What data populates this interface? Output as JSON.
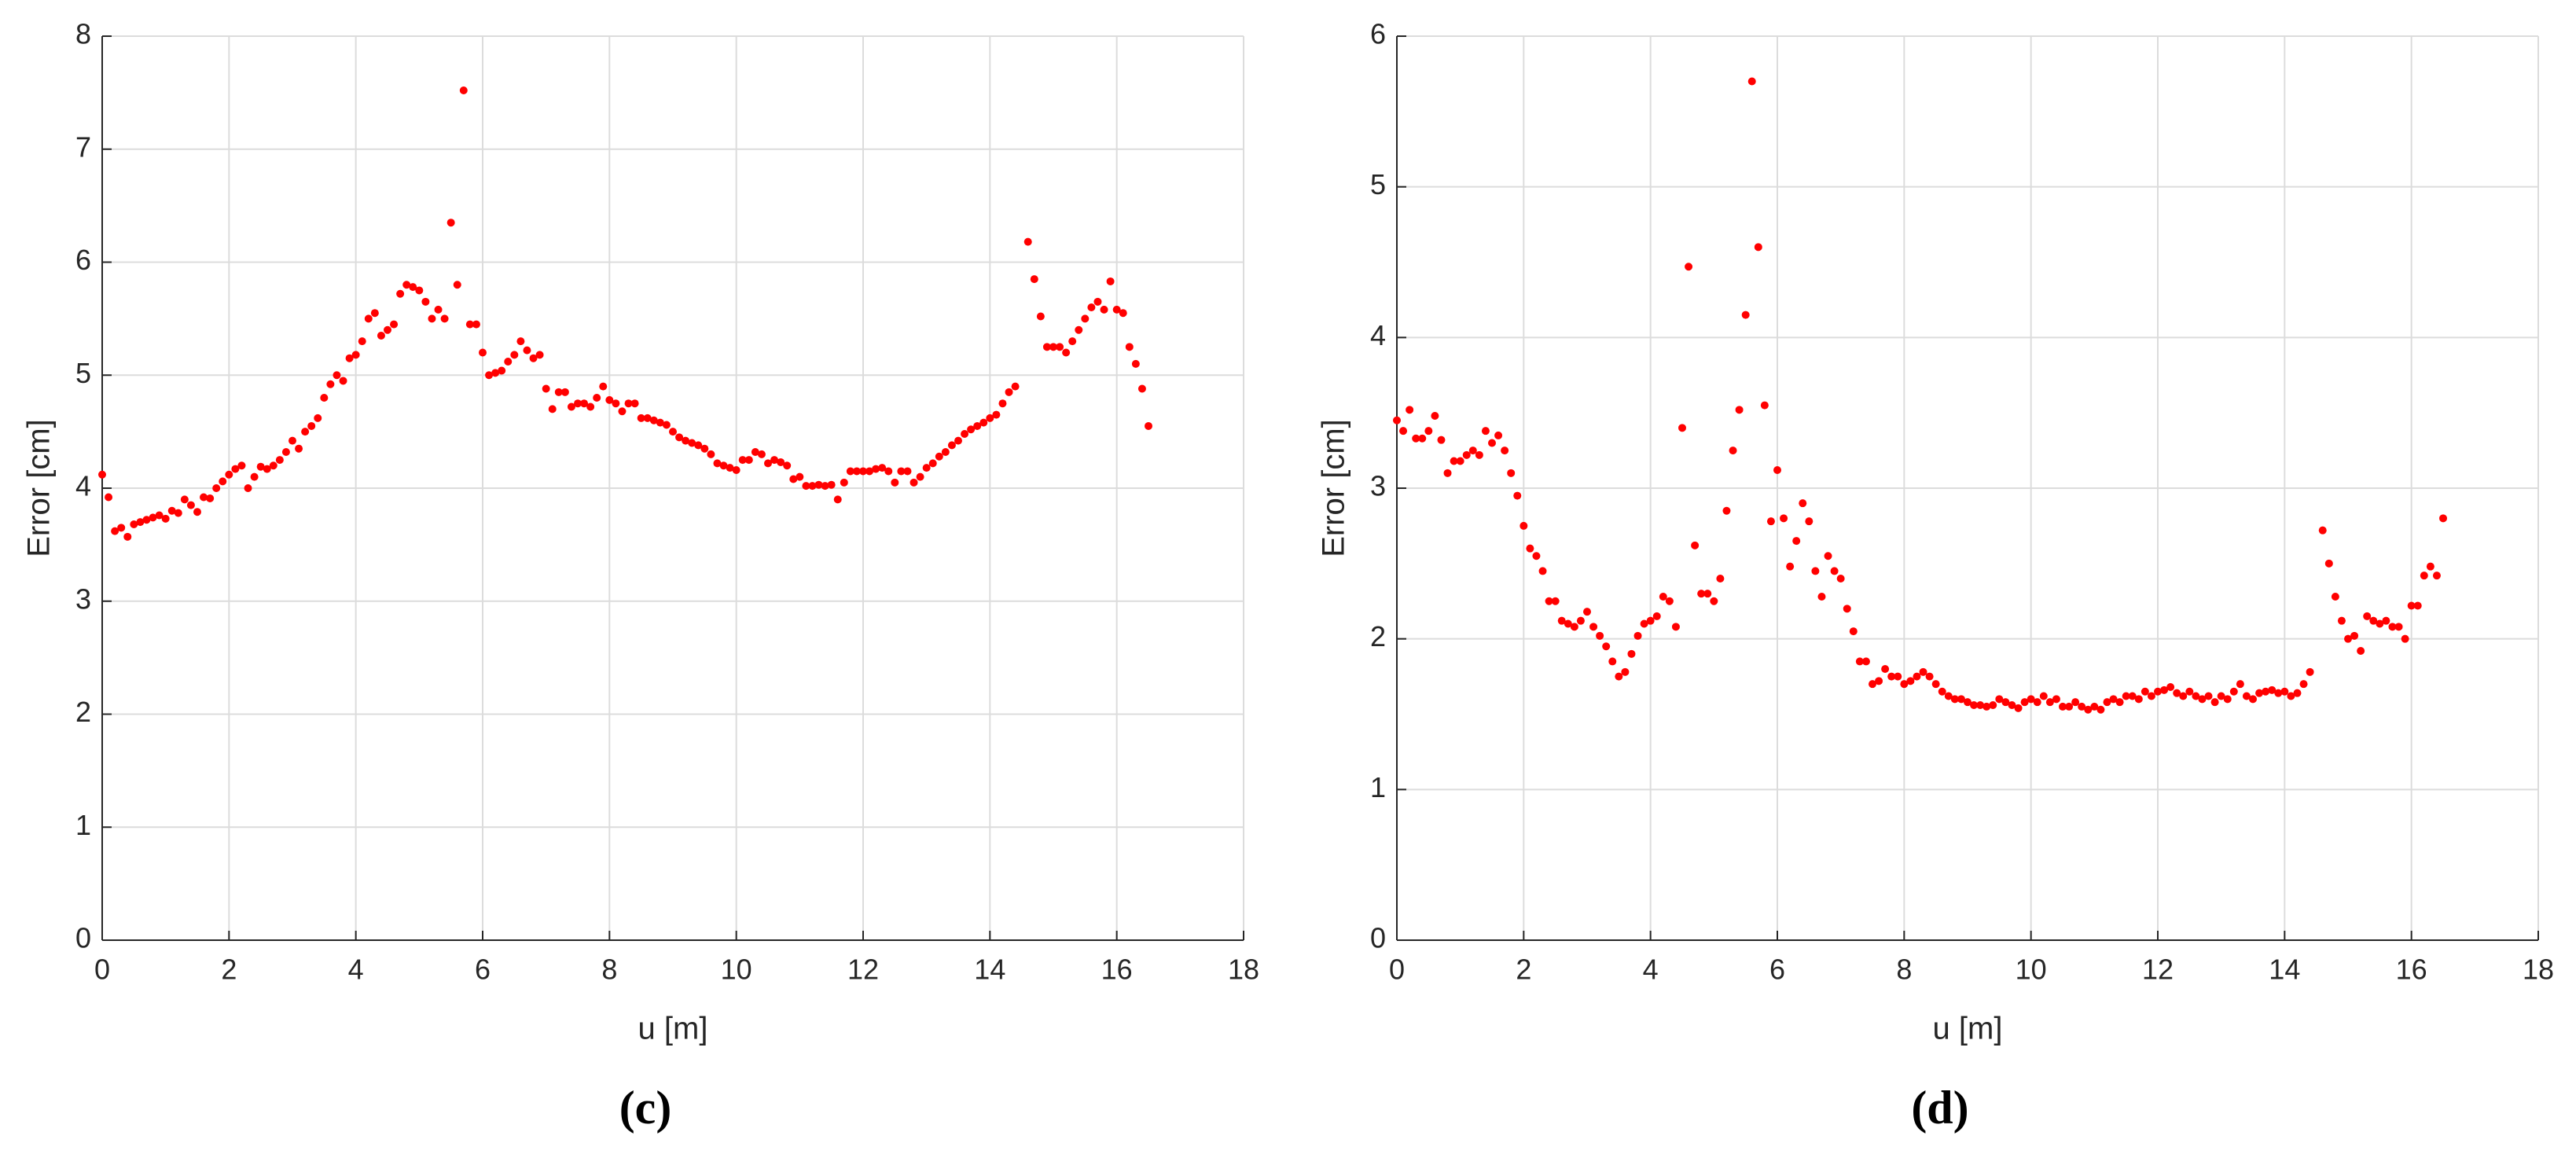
{
  "chart_data": [
    {
      "type": "scatter",
      "panel_label": "(c)",
      "xlabel": "u [m]",
      "ylabel": "Error [cm]",
      "xlim": [
        0,
        18
      ],
      "xticks": [
        0,
        2,
        4,
        6,
        8,
        10,
        12,
        14,
        16,
        18
      ],
      "ylim": [
        0,
        8
      ],
      "yticks": [
        0,
        1,
        2,
        3,
        4,
        5,
        6,
        7,
        8
      ],
      "grid": true,
      "color": "#ff0000",
      "x": [
        0,
        0.1,
        0.2,
        0.3,
        0.4,
        0.5,
        0.6,
        0.7,
        0.8,
        0.9,
        1,
        1.1,
        1.2,
        1.3,
        1.4,
        1.5,
        1.6,
        1.7,
        1.8,
        1.9,
        2,
        2.1,
        2.2,
        2.3,
        2.4,
        2.5,
        2.6,
        2.7,
        2.8,
        2.9,
        3,
        3.1,
        3.2,
        3.3,
        3.4,
        3.5,
        3.6,
        3.7,
        3.8,
        3.9,
        4,
        4.1,
        4.2,
        4.3,
        4.4,
        4.5,
        4.6,
        4.7,
        4.8,
        4.9,
        5,
        5.1,
        5.2,
        5.3,
        5.4,
        5.5,
        5.6,
        5.7,
        5.8,
        5.9,
        6,
        6.1,
        6.2,
        6.3,
        6.4,
        6.5,
        6.6,
        6.7,
        6.8,
        6.9,
        7,
        7.1,
        7.2,
        7.3,
        7.4,
        7.5,
        7.6,
        7.7,
        7.8,
        7.9,
        8,
        8.1,
        8.2,
        8.3,
        8.4,
        8.5,
        8.6,
        8.7,
        8.8,
        8.9,
        9,
        9.1,
        9.2,
        9.3,
        9.4,
        9.5,
        9.6,
        9.7,
        9.8,
        9.9,
        10,
        10.1,
        10.2,
        10.3,
        10.4,
        10.5,
        10.6,
        10.7,
        10.8,
        10.9,
        11,
        11.1,
        11.2,
        11.3,
        11.4,
        11.5,
        11.6,
        11.7,
        11.8,
        11.9,
        12,
        12.1,
        12.2,
        12.3,
        12.4,
        12.5,
        12.6,
        12.7,
        12.8,
        12.9,
        13,
        13.1,
        13.2,
        13.3,
        13.4,
        13.5,
        13.6,
        13.7,
        13.8,
        13.9,
        14,
        14.1,
        14.2,
        14.3,
        14.4,
        14.6,
        14.7,
        14.8,
        14.9,
        15,
        15.1,
        15.2,
        15.3,
        15.4,
        15.5,
        15.6,
        15.7,
        15.8,
        15.9,
        16,
        16.1,
        16.2,
        16.3,
        16.4,
        16.5
      ],
      "values": [
        4.12,
        3.92,
        3.62,
        3.65,
        3.57,
        3.68,
        3.7,
        3.72,
        3.74,
        3.76,
        3.73,
        3.8,
        3.78,
        3.9,
        3.85,
        3.79,
        3.92,
        3.91,
        4,
        4.06,
        4.12,
        4.17,
        4.2,
        4,
        4.1,
        4.19,
        4.17,
        4.2,
        4.25,
        4.32,
        4.42,
        4.35,
        4.5,
        4.55,
        4.62,
        4.8,
        4.92,
        5,
        4.95,
        5.15,
        5.18,
        5.3,
        5.5,
        5.55,
        5.35,
        5.4,
        5.45,
        5.72,
        5.8,
        5.78,
        5.75,
        5.65,
        5.5,
        5.58,
        5.5,
        6.35,
        5.8,
        7.52,
        5.45,
        5.45,
        5.2,
        5,
        5.02,
        5.04,
        5.12,
        5.18,
        5.3,
        5.22,
        5.15,
        5.18,
        4.88,
        4.7,
        4.85,
        4.85,
        4.72,
        4.75,
        4.75,
        4.72,
        4.8,
        4.9,
        4.78,
        4.75,
        4.68,
        4.75,
        4.75,
        4.62,
        4.62,
        4.6,
        4.58,
        4.56,
        4.5,
        4.45,
        4.42,
        4.4,
        4.38,
        4.35,
        4.3,
        4.22,
        4.2,
        4.18,
        4.16,
        4.25,
        4.25,
        4.32,
        4.3,
        4.22,
        4.25,
        4.23,
        4.2,
        4.08,
        4.1,
        4.02,
        4.02,
        4.03,
        4.02,
        4.03,
        3.9,
        4.05,
        4.15,
        4.15,
        4.15,
        4.15,
        4.17,
        4.18,
        4.15,
        4.05,
        4.15,
        4.15,
        4.05,
        4.1,
        4.18,
        4.22,
        4.28,
        4.32,
        4.38,
        4.42,
        4.48,
        4.52,
        4.55,
        4.58,
        4.62,
        4.65,
        4.75,
        4.85,
        4.9,
        6.18,
        5.85,
        5.52,
        5.25,
        5.25,
        5.25,
        5.2,
        5.3,
        5.4,
        5.5,
        5.6,
        5.65,
        5.58,
        5.83,
        5.58,
        5.55,
        5.25,
        5.1,
        4.88,
        4.55
      ]
    },
    {
      "type": "scatter",
      "panel_label": "(d)",
      "xlabel": "u [m]",
      "ylabel": "Error [cm]",
      "xlim": [
        0,
        18
      ],
      "xticks": [
        0,
        2,
        4,
        6,
        8,
        10,
        12,
        14,
        16,
        18
      ],
      "ylim": [
        0,
        6
      ],
      "yticks": [
        0,
        1,
        2,
        3,
        4,
        5,
        6
      ],
      "grid": true,
      "color": "#ff0000",
      "x": [
        0,
        0.1,
        0.2,
        0.3,
        0.4,
        0.5,
        0.6,
        0.7,
        0.8,
        0.9,
        1,
        1.1,
        1.2,
        1.3,
        1.4,
        1.5,
        1.6,
        1.7,
        1.8,
        1.9,
        2,
        2.1,
        2.2,
        2.3,
        2.4,
        2.5,
        2.6,
        2.7,
        2.8,
        2.9,
        3,
        3.1,
        3.2,
        3.3,
        3.4,
        3.5,
        3.6,
        3.7,
        3.8,
        3.9,
        4,
        4.1,
        4.2,
        4.3,
        4.4,
        4.5,
        4.6,
        4.7,
        4.8,
        4.9,
        5,
        5.1,
        5.2,
        5.3,
        5.4,
        5.5,
        5.6,
        5.7,
        5.8,
        5.9,
        6,
        6.1,
        6.2,
        6.3,
        6.4,
        6.5,
        6.6,
        6.7,
        6.8,
        6.9,
        7,
        7.1,
        7.2,
        7.3,
        7.4,
        7.5,
        7.6,
        7.7,
        7.8,
        7.9,
        8,
        8.1,
        8.2,
        8.3,
        8.4,
        8.5,
        8.6,
        8.7,
        8.8,
        8.9,
        9,
        9.1,
        9.2,
        9.3,
        9.4,
        9.5,
        9.6,
        9.7,
        9.8,
        9.9,
        10,
        10.1,
        10.2,
        10.3,
        10.4,
        10.5,
        10.6,
        10.7,
        10.8,
        10.9,
        11,
        11.1,
        11.2,
        11.3,
        11.4,
        11.5,
        11.6,
        11.7,
        11.8,
        11.9,
        12,
        12.1,
        12.2,
        12.3,
        12.4,
        12.5,
        12.6,
        12.7,
        12.8,
        12.9,
        13,
        13.1,
        13.2,
        13.3,
        13.4,
        13.5,
        13.6,
        13.7,
        13.8,
        13.9,
        14,
        14.1,
        14.2,
        14.3,
        14.4,
        14.6,
        14.7,
        14.8,
        14.9,
        15,
        15.1,
        15.2,
        15.3,
        15.4,
        15.5,
        15.6,
        15.7,
        15.8,
        15.9,
        16,
        16.1,
        16.2,
        16.3,
        16.4,
        16.5
      ],
      "values": [
        3.45,
        3.38,
        3.52,
        3.33,
        3.33,
        3.38,
        3.48,
        3.32,
        3.1,
        3.18,
        3.18,
        3.22,
        3.25,
        3.22,
        3.38,
        3.3,
        3.35,
        3.25,
        3.1,
        2.95,
        2.75,
        2.6,
        2.55,
        2.45,
        2.25,
        2.25,
        2.12,
        2.1,
        2.08,
        2.12,
        2.18,
        2.08,
        2.02,
        1.95,
        1.85,
        1.75,
        1.78,
        1.9,
        2.02,
        2.1,
        2.12,
        2.15,
        2.28,
        2.25,
        2.08,
        3.4,
        4.47,
        2.62,
        2.3,
        2.3,
        2.25,
        2.4,
        2.85,
        3.25,
        3.52,
        4.15,
        5.7,
        4.6,
        3.55,
        2.78,
        3.12,
        2.8,
        2.48,
        2.65,
        2.9,
        2.78,
        2.45,
        2.28,
        2.55,
        2.45,
        2.4,
        2.2,
        2.05,
        1.85,
        1.85,
        1.7,
        1.72,
        1.8,
        1.75,
        1.75,
        1.7,
        1.72,
        1.75,
        1.78,
        1.75,
        1.7,
        1.65,
        1.62,
        1.6,
        1.6,
        1.58,
        1.56,
        1.56,
        1.55,
        1.56,
        1.6,
        1.58,
        1.56,
        1.54,
        1.58,
        1.6,
        1.58,
        1.62,
        1.58,
        1.6,
        1.55,
        1.55,
        1.58,
        1.55,
        1.53,
        1.55,
        1.53,
        1.58,
        1.6,
        1.58,
        1.62,
        1.62,
        1.6,
        1.65,
        1.62,
        1.65,
        1.66,
        1.68,
        1.64,
        1.62,
        1.65,
        1.62,
        1.6,
        1.62,
        1.58,
        1.62,
        1.6,
        1.65,
        1.7,
        1.62,
        1.6,
        1.64,
        1.65,
        1.66,
        1.64,
        1.65,
        1.62,
        1.64,
        1.7,
        1.78,
        2.72,
        2.5,
        2.28,
        2.12,
        2,
        2.02,
        1.92,
        2.15,
        2.12,
        2.1,
        2.12,
        2.08,
        2.08,
        2,
        2.22,
        2.22,
        2.42,
        2.48,
        2.42,
        2.8
      ]
    }
  ]
}
